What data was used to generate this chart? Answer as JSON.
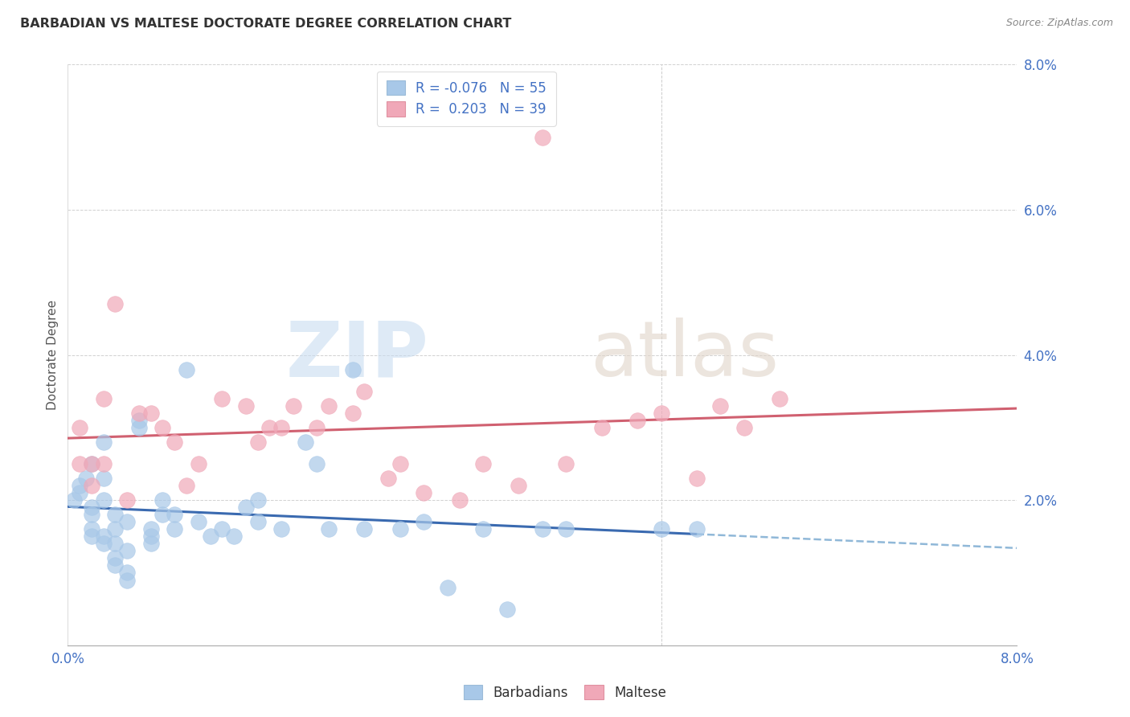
{
  "title": "BARBADIAN VS MALTESE DOCTORATE DEGREE CORRELATION CHART",
  "source": "Source: ZipAtlas.com",
  "ylabel": "Doctorate Degree",
  "barbadian_color": "#A8C8E8",
  "maltese_color": "#F0A8B8",
  "barbadian_line_color": "#3A6AB0",
  "maltese_line_color": "#D06070",
  "barbadian_dash_color": "#90B8D8",
  "barbadian_R": -0.076,
  "barbadian_N": 55,
  "maltese_R": 0.203,
  "maltese_N": 39,
  "xlim": [
    0.0,
    0.08
  ],
  "ylim": [
    0.0,
    0.08
  ],
  "ytick_vals": [
    0.0,
    0.02,
    0.04,
    0.06,
    0.08
  ],
  "ytick_labels": [
    "",
    "2.0%",
    "4.0%",
    "6.0%",
    "8.0%"
  ],
  "xtick_vals": [
    0.0,
    0.01,
    0.02,
    0.03,
    0.04,
    0.05,
    0.06,
    0.07,
    0.08
  ],
  "xtick_labels": [
    "0.0%",
    "",
    "",
    "",
    "",
    "",
    "",
    "",
    "8.0%"
  ],
  "barbadian_x": [
    0.0005,
    0.001,
    0.001,
    0.0015,
    0.002,
    0.002,
    0.002,
    0.002,
    0.002,
    0.003,
    0.003,
    0.003,
    0.003,
    0.003,
    0.004,
    0.004,
    0.004,
    0.004,
    0.004,
    0.005,
    0.005,
    0.005,
    0.005,
    0.006,
    0.006,
    0.007,
    0.007,
    0.007,
    0.008,
    0.008,
    0.009,
    0.009,
    0.01,
    0.011,
    0.012,
    0.013,
    0.014,
    0.015,
    0.016,
    0.016,
    0.018,
    0.02,
    0.021,
    0.022,
    0.024,
    0.025,
    0.028,
    0.03,
    0.032,
    0.035,
    0.037,
    0.04,
    0.042,
    0.05,
    0.053
  ],
  "barbadian_y": [
    0.02,
    0.021,
    0.022,
    0.023,
    0.025,
    0.019,
    0.018,
    0.016,
    0.015,
    0.02,
    0.023,
    0.028,
    0.015,
    0.014,
    0.016,
    0.018,
    0.014,
    0.012,
    0.011,
    0.017,
    0.013,
    0.01,
    0.009,
    0.031,
    0.03,
    0.015,
    0.016,
    0.014,
    0.02,
    0.018,
    0.018,
    0.016,
    0.038,
    0.017,
    0.015,
    0.016,
    0.015,
    0.019,
    0.02,
    0.017,
    0.016,
    0.028,
    0.025,
    0.016,
    0.038,
    0.016,
    0.016,
    0.017,
    0.008,
    0.016,
    0.005,
    0.016,
    0.016,
    0.016,
    0.016
  ],
  "maltese_x": [
    0.001,
    0.001,
    0.002,
    0.002,
    0.003,
    0.003,
    0.004,
    0.005,
    0.006,
    0.007,
    0.008,
    0.009,
    0.01,
    0.011,
    0.013,
    0.015,
    0.016,
    0.017,
    0.018,
    0.019,
    0.021,
    0.022,
    0.024,
    0.025,
    0.027,
    0.028,
    0.03,
    0.033,
    0.035,
    0.038,
    0.04,
    0.042,
    0.045,
    0.048,
    0.05,
    0.053,
    0.055,
    0.057,
    0.06
  ],
  "maltese_y": [
    0.03,
    0.025,
    0.025,
    0.022,
    0.034,
    0.025,
    0.047,
    0.02,
    0.032,
    0.032,
    0.03,
    0.028,
    0.022,
    0.025,
    0.034,
    0.033,
    0.028,
    0.03,
    0.03,
    0.033,
    0.03,
    0.033,
    0.032,
    0.035,
    0.023,
    0.025,
    0.021,
    0.02,
    0.025,
    0.022,
    0.07,
    0.025,
    0.03,
    0.031,
    0.032,
    0.023,
    0.033,
    0.03,
    0.034
  ],
  "legend_label_color": "#4472C4",
  "watermark_zip_color": "#C8DCF0",
  "watermark_atlas_color": "#E0D4C8"
}
